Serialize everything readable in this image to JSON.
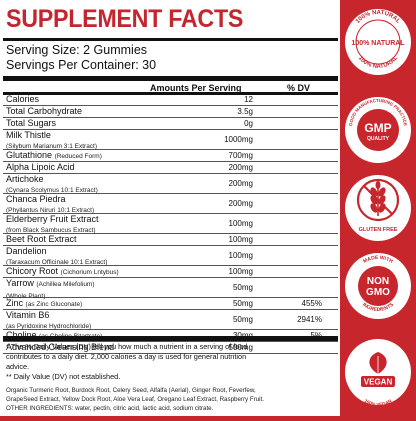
{
  "title": "SUPPLEMENT FACTS",
  "serving_size": "Serving Size: 2 Gummies",
  "servings_per_container": "Servings Per Container: 30",
  "column_headers": {
    "amount": "Amounts Per Serving",
    "dv": "% DV"
  },
  "rows": [
    {
      "name": "Calories",
      "sub": "",
      "sub2": "",
      "amount": "12",
      "dv": ""
    },
    {
      "name": "Total Carbohydrate",
      "sub": "",
      "sub2": "",
      "amount": "3.5g",
      "dv": ""
    },
    {
      "name": "Total Sugars",
      "sub": "",
      "sub2": "",
      "amount": "0g",
      "dv": ""
    },
    {
      "name": "Milk Thistle",
      "sub": "",
      "sub2": "(Silybum Marianum 3:1 Extract)",
      "amount": "1000mg",
      "dv": ""
    },
    {
      "name": "Glutathione",
      "sub": "(Reduced Form)",
      "sub2": "",
      "amount": "700mg",
      "dv": ""
    },
    {
      "name": "Alpha Lipoic Acid",
      "sub": "",
      "sub2": "",
      "amount": "200mg",
      "dv": ""
    },
    {
      "name": "Artichoke",
      "sub": "",
      "sub2": "(Cynara Scolymus 10:1 Extract)",
      "amount": "200mg",
      "dv": ""
    },
    {
      "name": "Chanca Piedra",
      "sub": "",
      "sub2": "(Phyllantus Niruri 10:1 Extract)",
      "amount": "200mg",
      "dv": ""
    },
    {
      "name": "Elderberry Fruit Extract",
      "sub": "",
      "sub2": "(from Black Sambucus Extract)",
      "amount": "100mg",
      "dv": ""
    },
    {
      "name": "Beet Root Extract",
      "sub": "",
      "sub2": "",
      "amount": "100mg",
      "dv": ""
    },
    {
      "name": "Dandelion",
      "sub": "",
      "sub2": "(Taraxacum Officinale 10:1 Extract)",
      "amount": "100mg",
      "dv": ""
    },
    {
      "name": "Chicory Root",
      "sub": "(Cichorium Lntybus)",
      "sub2": "",
      "amount": "100mg",
      "dv": ""
    },
    {
      "name": "Yarrow",
      "sub": "(Achillea Milefolium)",
      "sub2": "(Whole Plant)",
      "amount": "50mg",
      "dv": ""
    },
    {
      "name": "Zinc",
      "sub": "(as Zinc Gluconate)",
      "sub2": "",
      "amount": "50mg",
      "dv": "455%"
    },
    {
      "name": "Vitamin B6",
      "sub": "",
      "sub2": "(as Pyridoxine Hydrochloride)",
      "amount": "50mg",
      "dv": "2941%"
    },
    {
      "name": "Choline",
      "sub": "(as Choline Bitartrate)",
      "sub2": "",
      "amount": "30mg",
      "dv": "5%"
    },
    {
      "name": "Advanced Cleansing Blend",
      "sub": "",
      "sub2": "",
      "amount": "500mg",
      "dv": ""
    }
  ],
  "footnote_line1": "* The % Daily Values (DV) tell you how much a nutrient in a serving of food",
  "footnote_line2": "contributes to a daily diet. 2,000 calories a day is used for general nutrition",
  "footnote_line3": "advice.",
  "footnote_line4": "** Daily Value (DV) not established.",
  "ingredients_line1": "Organic Turmeric Root, Burdock Root, Celery Seed, Alfalfa (Aerial), Ginger Root, Feverfew,",
  "ingredients_line2": "GrapeSeed Extract, Yellow Dock Root, Aloe Vera Leaf, Oregano Leaf Extract, Raspberry Fruit.",
  "ingredients_line3": "OTHER INGREDIENTS: water, pectin, citric acid, lactic acid, sodium citrate.",
  "badges": {
    "natural_top": "100% NATURAL",
    "natural_center": "100% NATURAL",
    "natural_bottom": "100% NATURAL",
    "gmp_ring": "GOOD MANUFACTURING PRACTICE",
    "gmp_main": "GMP",
    "gmp_sub": "QUALITY",
    "gluten": "GLUTEN FREE",
    "nongmo_top": "MADE WITH",
    "nongmo_main1": "NON",
    "nongmo_main2": "GMO",
    "nongmo_bottom": "INGREDIENTS",
    "vegan": "VEGAN",
    "vegan_ring": "100% VEGAN"
  },
  "colors": {
    "brand_red": "#c4262f",
    "badge_bg": "#c8262d",
    "text": "#111111"
  }
}
